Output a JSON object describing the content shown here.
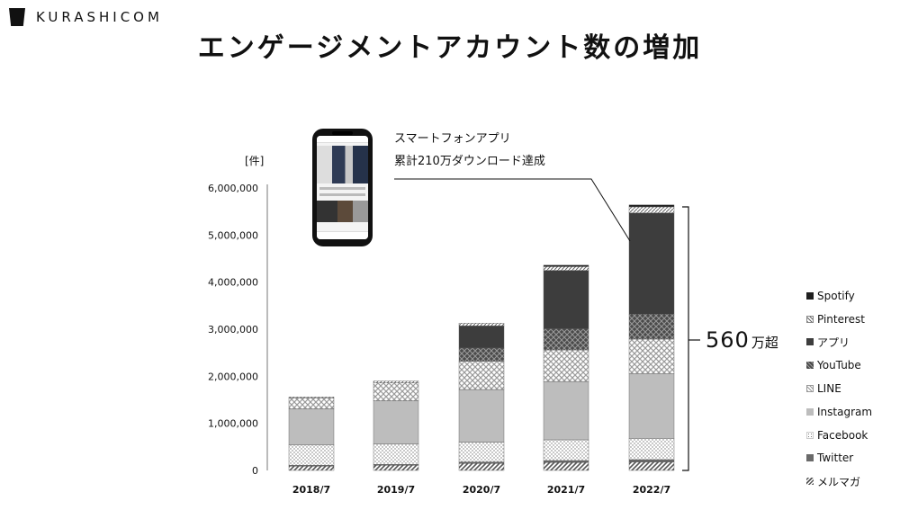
{
  "logo": {
    "text": "KURASHICOM"
  },
  "title": "エンゲージメントアカウント数の増加",
  "annotation": {
    "line1": "スマートフォンアプリ",
    "line2": "累計210万ダウンロード達成"
  },
  "total": {
    "value": "560",
    "suffix": "万超"
  },
  "colors": {
    "Spotify": "#1f1f1f",
    "Pinterest": "#ffffff",
    "アプリ": "#3d3d3d",
    "YouTube": "#555555",
    "LINE": "#d6d6d6",
    "Instagram": "#bdbdbd",
    "Facebook": "#f2f2f2",
    "Twitter": "#6a6a6a",
    "メルマガ": "#888888"
  },
  "chart_data": {
    "type": "bar",
    "stacked": true,
    "ylabel": "[件]",
    "ylim": [
      0,
      6000000
    ],
    "yticks": [
      "0",
      "1,000,000",
      "2,000,000",
      "3,000,000",
      "4,000,000",
      "5,000,000",
      "6,000,000"
    ],
    "ytick_values": [
      0,
      1000000,
      2000000,
      3000000,
      4000000,
      5000000,
      6000000
    ],
    "categories": [
      "2018/7",
      "2019/7",
      "2020/7",
      "2021/7",
      "2022/7"
    ],
    "grid": false,
    "legend_position": "right",
    "series": [
      {
        "name": "メルマガ",
        "values": [
          90000,
          110000,
          150000,
          170000,
          180000
        ]
      },
      {
        "name": "Twitter",
        "values": [
          20000,
          20000,
          30000,
          40000,
          50000
        ]
      },
      {
        "name": "Facebook",
        "values": [
          430000,
          430000,
          420000,
          440000,
          450000
        ]
      },
      {
        "name": "Instagram",
        "values": [
          770000,
          920000,
          1120000,
          1240000,
          1380000
        ]
      },
      {
        "name": "LINE",
        "values": [
          230000,
          380000,
          600000,
          670000,
          730000
        ]
      },
      {
        "name": "YouTube",
        "values": [
          0,
          0,
          280000,
          450000,
          530000
        ]
      },
      {
        "name": "アプリ",
        "values": [
          0,
          0,
          470000,
          1240000,
          2150000
        ]
      },
      {
        "name": "Pinterest",
        "values": [
          20000,
          40000,
          60000,
          80000,
          130000
        ]
      },
      {
        "name": "Spotify",
        "values": [
          0,
          0,
          0,
          30000,
          40000
        ]
      }
    ],
    "legend_order": [
      "Spotify",
      "Pinterest",
      "アプリ",
      "YouTube",
      "LINE",
      "Instagram",
      "Facebook",
      "Twitter",
      "メルマガ"
    ]
  }
}
